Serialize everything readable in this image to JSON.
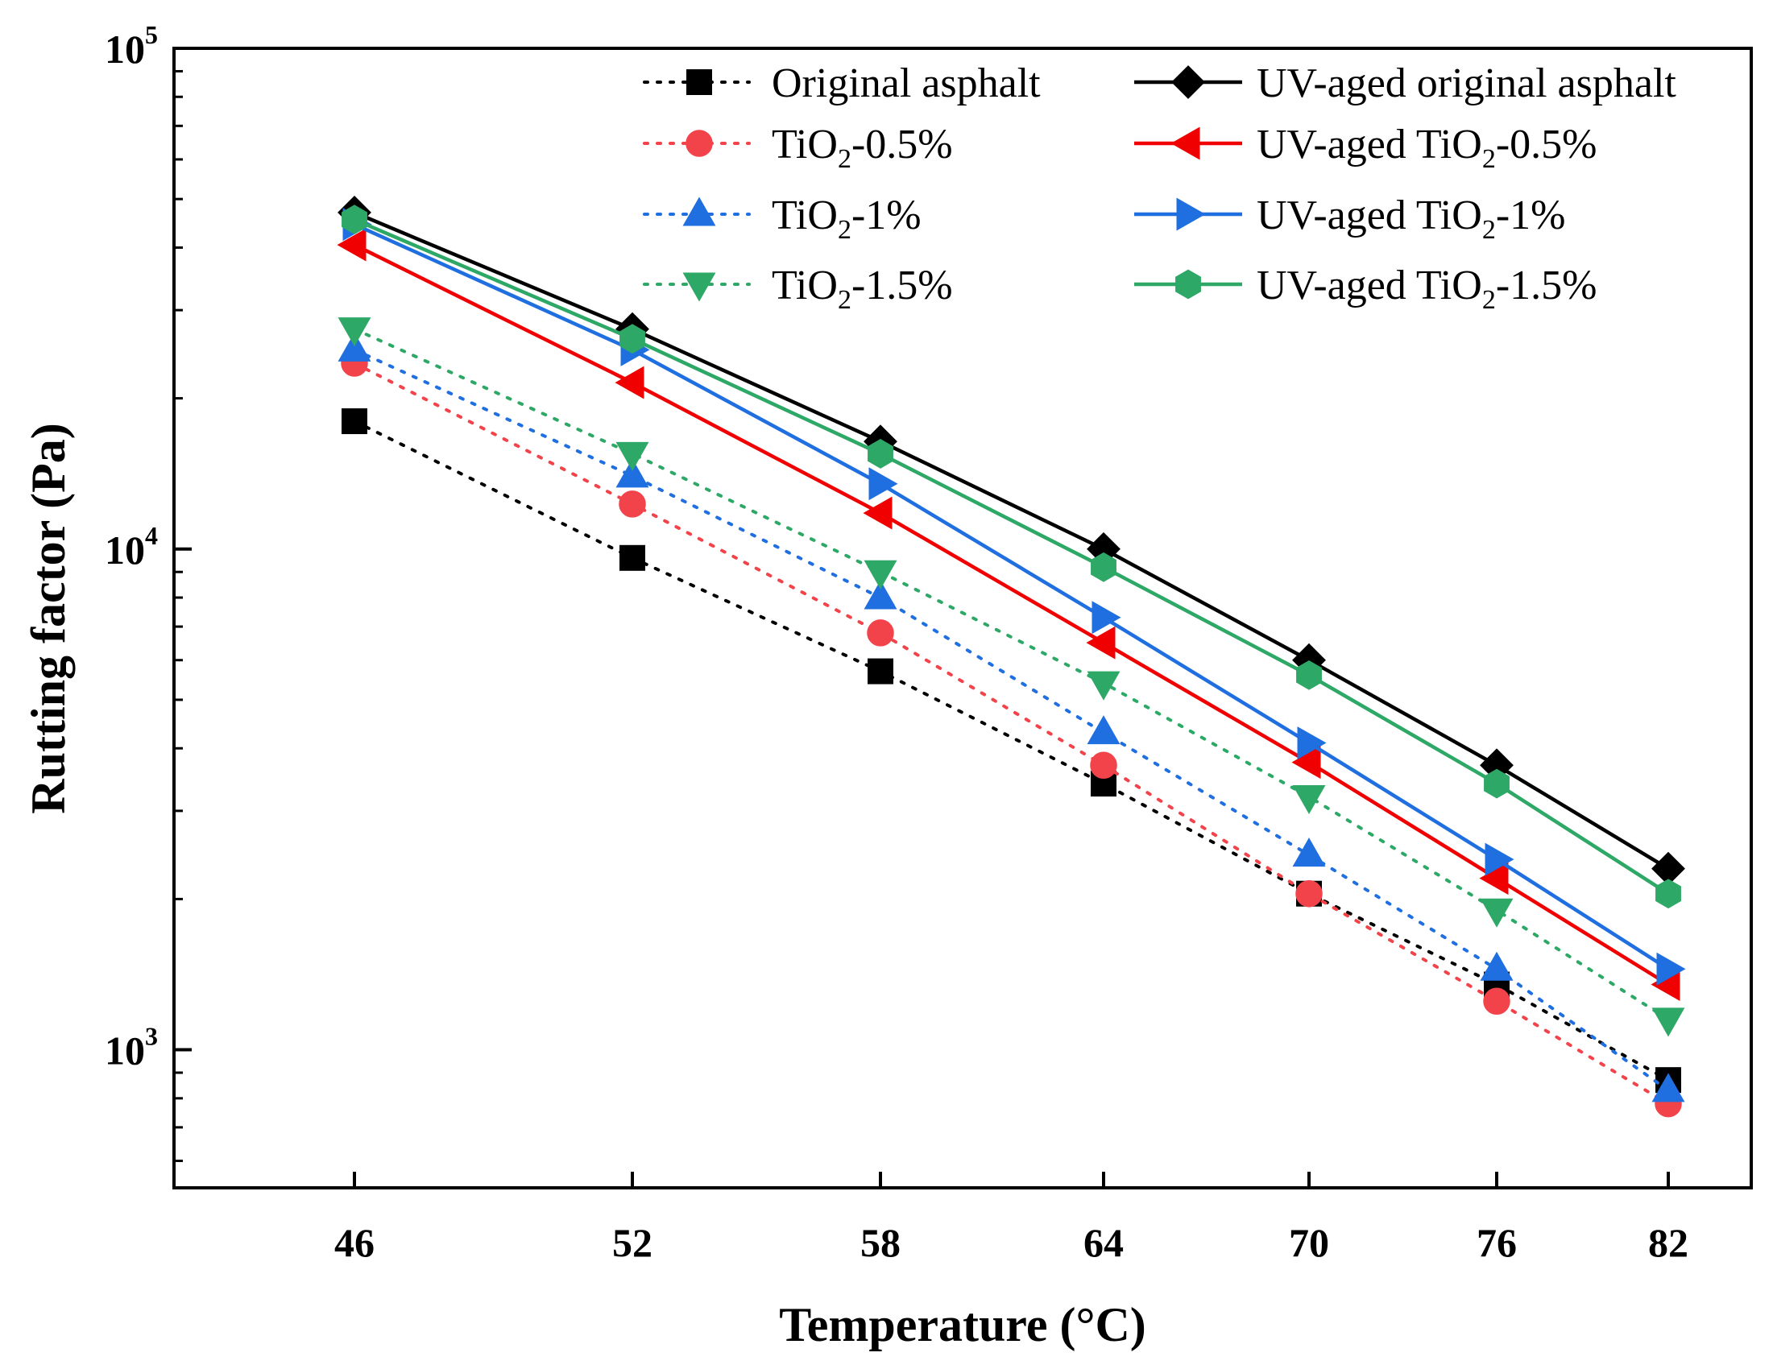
{
  "chart_data": {
    "type": "line",
    "title": "",
    "xlabel": "Temperature (°C)",
    "ylabel": "Rutting factor (Pa)",
    "x": [
      46,
      52,
      58,
      64,
      70,
      76,
      82
    ],
    "x_ticks": [
      "46",
      "52",
      "58",
      "64",
      "70",
      "76",
      "82"
    ],
    "y_scale": "log",
    "ylim": [
      530,
      100000
    ],
    "y_ticks": [
      {
        "value": 1000,
        "base": "10",
        "exp": "3"
      },
      {
        "value": 10000,
        "base": "10",
        "exp": "4"
      },
      {
        "value": 100000,
        "base": "10",
        "exp": "5"
      }
    ],
    "grid": false,
    "legend_position": "top-right",
    "series": [
      {
        "name": "Original asphalt",
        "label_parts": {
          "pre": "Original asphalt",
          "sub": "",
          "post": ""
        },
        "color": "#000000",
        "style": "dotted",
        "marker": "square",
        "values": [
          18000,
          9600,
          5700,
          3400,
          2050,
          1350,
          870
        ]
      },
      {
        "name": "TiO2-0.5%",
        "label_parts": {
          "pre": "TiO",
          "sub": "2",
          "post": "-0.5%"
        },
        "color": "#f2434a",
        "style": "dotted",
        "marker": "circle",
        "values": [
          23500,
          12300,
          6800,
          3700,
          2050,
          1250,
          780
        ]
      },
      {
        "name": "TiO2-1%",
        "label_parts": {
          "pre": "TiO",
          "sub": "2",
          "post": "-1%"
        },
        "color": "#1f6fe0",
        "style": "dotted",
        "marker": "triangle-up",
        "values": [
          25000,
          14000,
          8000,
          4300,
          2450,
          1450,
          830
        ]
      },
      {
        "name": "TiO2-1.5%",
        "label_parts": {
          "pre": "TiO",
          "sub": "2",
          "post": "-1.5%"
        },
        "color": "#2ea866",
        "style": "dotted",
        "marker": "triangle-down",
        "values": [
          27500,
          15500,
          9000,
          5400,
          3200,
          1900,
          1150
        ]
      },
      {
        "name": "UV-aged original asphalt",
        "label_parts": {
          "pre": "UV-aged original asphalt",
          "sub": "",
          "post": ""
        },
        "color": "#000000",
        "style": "solid",
        "marker": "diamond",
        "values": [
          47000,
          27500,
          16400,
          10000,
          6000,
          3700,
          2300
        ]
      },
      {
        "name": "UV-aged TiO2-0.5%",
        "label_parts": {
          "pre": "UV-aged TiO",
          "sub": "2",
          "post": "-0.5%"
        },
        "color": "#f00000",
        "style": "solid",
        "marker": "triangle-left",
        "values": [
          40500,
          21500,
          11800,
          6500,
          3750,
          2200,
          1350
        ]
      },
      {
        "name": "UV-aged TiO2-1%",
        "label_parts": {
          "pre": "UV-aged TiO",
          "sub": "2",
          "post": "-1%"
        },
        "color": "#1f6fe0",
        "style": "solid",
        "marker": "triangle-right",
        "values": [
          44500,
          25000,
          13500,
          7300,
          4100,
          2400,
          1450
        ]
      },
      {
        "name": "UV-aged TiO2-1.5%",
        "label_parts": {
          "pre": "UV-aged TiO",
          "sub": "2",
          "post": "-1.5%"
        },
        "color": "#2ea866",
        "style": "solid",
        "marker": "hexagon",
        "values": [
          45500,
          26300,
          15500,
          9200,
          5600,
          3400,
          2050
        ]
      }
    ]
  }
}
